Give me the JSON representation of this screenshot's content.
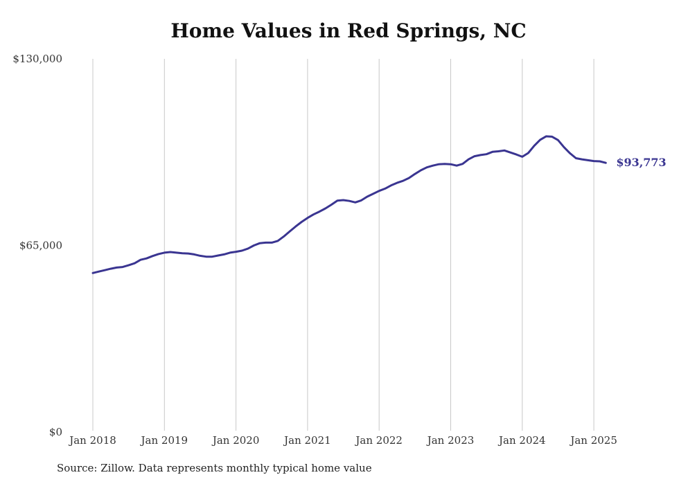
{
  "chart_data": {
    "type": "line",
    "title": "Home Values in Red Springs, NC",
    "source": "Source: Zillow. Data represents monthly typical home value",
    "end_label": "$93,773",
    "colors": {
      "line": "#3a3591",
      "grid": "#c8c8c8",
      "tick_text": "#333333"
    },
    "ylim": [
      0,
      130000
    ],
    "yticks": [
      {
        "value": 0,
        "label": "$0"
      },
      {
        "value": 65000,
        "label": "$65,000"
      },
      {
        "value": 130000,
        "label": "$130,000"
      }
    ],
    "xticks": [
      {
        "date": "2018-01",
        "label": "Jan 2018"
      },
      {
        "date": "2019-01",
        "label": "Jan 2019"
      },
      {
        "date": "2020-01",
        "label": "Jan 2020"
      },
      {
        "date": "2021-01",
        "label": "Jan 2021"
      },
      {
        "date": "2022-01",
        "label": "Jan 2022"
      },
      {
        "date": "2023-01",
        "label": "Jan 2023"
      },
      {
        "date": "2024-01",
        "label": "Jan 2024"
      },
      {
        "date": "2025-01",
        "label": "Jan 2025"
      }
    ],
    "series": [
      {
        "x": [
          "2018-01",
          "2018-02",
          "2018-03",
          "2018-04",
          "2018-05",
          "2018-06",
          "2018-07",
          "2018-08",
          "2018-09",
          "2018-10",
          "2018-11",
          "2018-12",
          "2019-01",
          "2019-02",
          "2019-03",
          "2019-04",
          "2019-05",
          "2019-06",
          "2019-07",
          "2019-08",
          "2019-09",
          "2019-10",
          "2019-11",
          "2019-12",
          "2020-01",
          "2020-02",
          "2020-03",
          "2020-04",
          "2020-05",
          "2020-06",
          "2020-07",
          "2020-08",
          "2020-09",
          "2020-10",
          "2020-11",
          "2020-12",
          "2021-01",
          "2021-02",
          "2021-03",
          "2021-04",
          "2021-05",
          "2021-06",
          "2021-07",
          "2021-08",
          "2021-09",
          "2021-10",
          "2021-11",
          "2021-12",
          "2022-01",
          "2022-02",
          "2022-03",
          "2022-04",
          "2022-05",
          "2022-06",
          "2022-07",
          "2022-08",
          "2022-09",
          "2022-10",
          "2022-11",
          "2022-12",
          "2023-01",
          "2023-02",
          "2023-03",
          "2023-04",
          "2023-05",
          "2023-06",
          "2023-07",
          "2023-08",
          "2023-09",
          "2023-10",
          "2023-11",
          "2023-12",
          "2024-01",
          "2024-02",
          "2024-03",
          "2024-04",
          "2024-05",
          "2024-06",
          "2024-07",
          "2024-08",
          "2024-09",
          "2024-10",
          "2024-11",
          "2024-12",
          "2025-01",
          "2025-02",
          "2025-03"
        ],
        "values": [
          55400,
          55900,
          56400,
          56900,
          57300,
          57500,
          58100,
          58800,
          60000,
          60500,
          61300,
          62000,
          62500,
          62700,
          62500,
          62300,
          62200,
          61900,
          61400,
          61100,
          61100,
          61500,
          61900,
          62500,
          62800,
          63200,
          63900,
          65000,
          65800,
          66000,
          66000,
          66600,
          68100,
          69900,
          71600,
          73200,
          74600,
          75800,
          76800,
          77900,
          79200,
          80600,
          80800,
          80500,
          80000,
          80700,
          82000,
          83000,
          84000,
          84800,
          85900,
          86800,
          87500,
          88500,
          89900,
          91200,
          92200,
          92800,
          93300,
          93400,
          93300,
          92800,
          93400,
          95000,
          96100,
          96500,
          96800,
          97600,
          97800,
          98100,
          97400,
          96700,
          95900,
          97200,
          99700,
          101800,
          103000,
          102900,
          101700,
          99200,
          97100,
          95400,
          95000,
          94700,
          94400,
          94300,
          93773
        ]
      }
    ]
  }
}
